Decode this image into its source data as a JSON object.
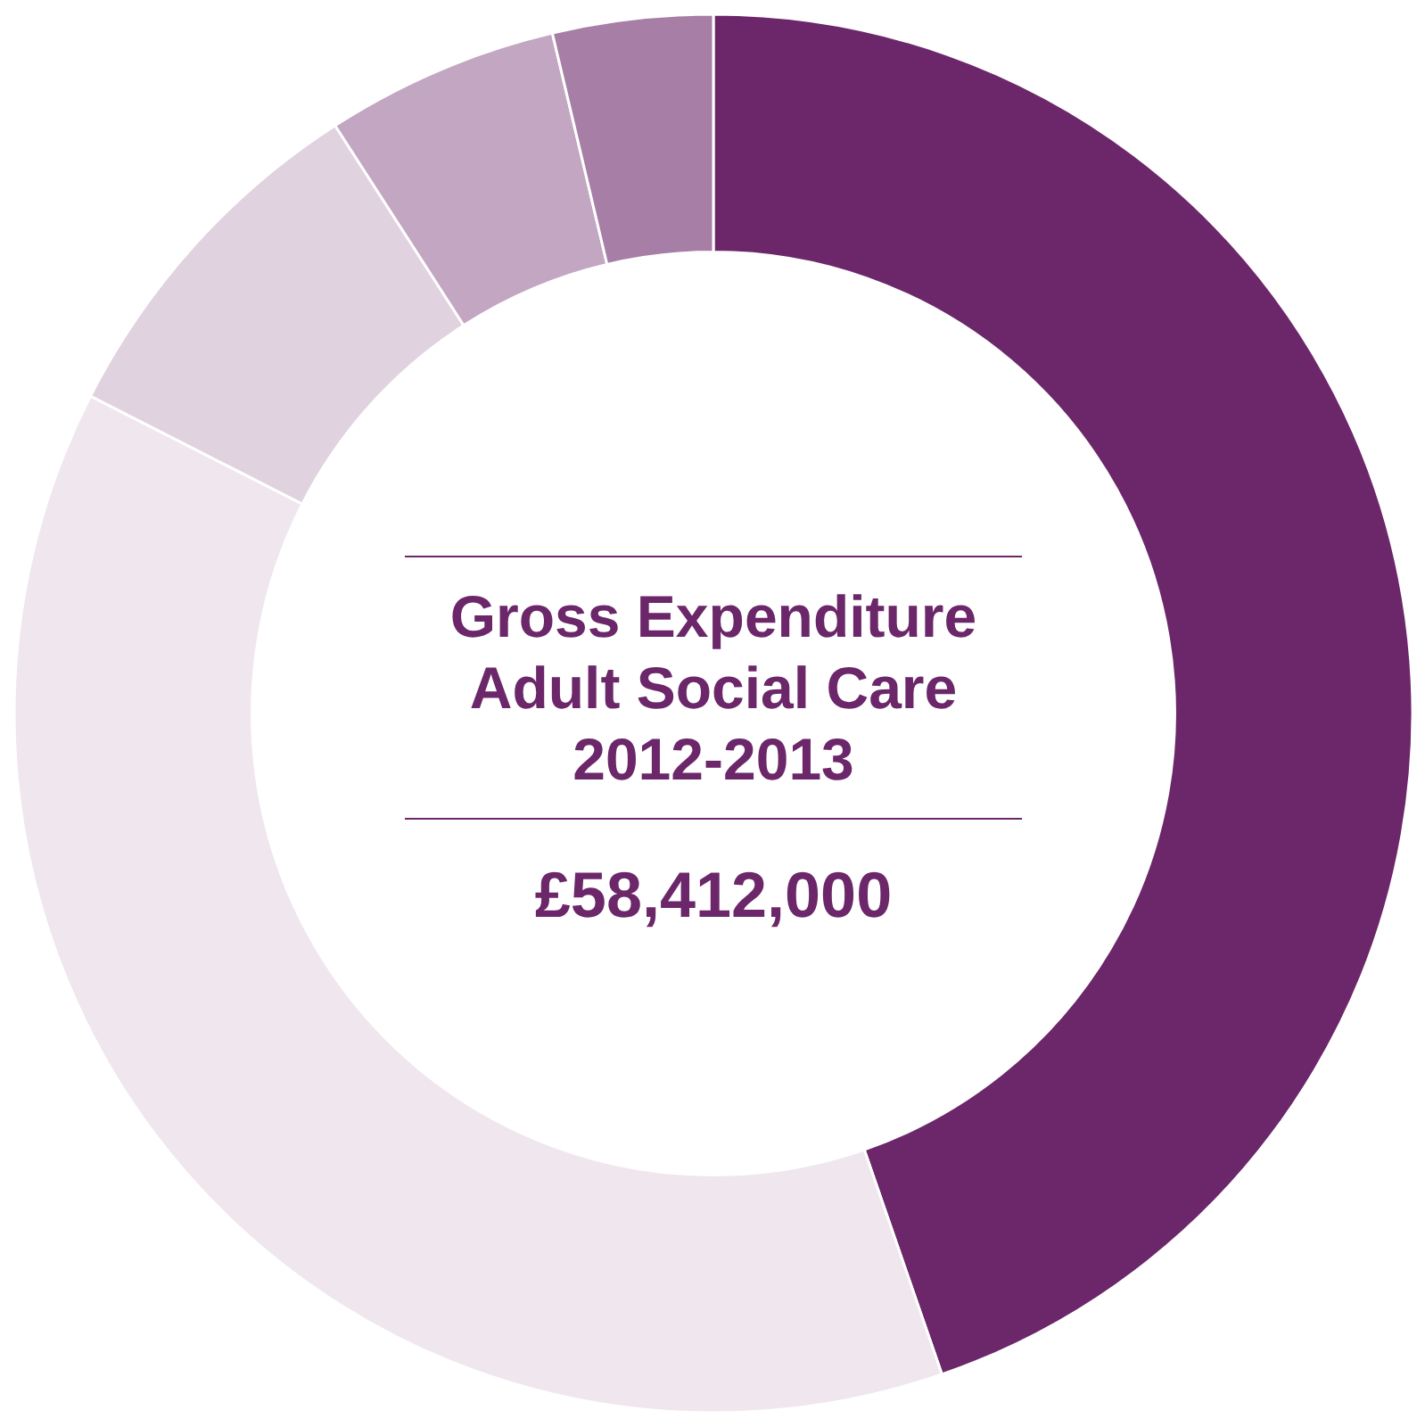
{
  "chart_data": {
    "type": "donut",
    "title": "Gross Expenditure Adult Social Care 2012-2013",
    "subtitle": "£58,412,000",
    "categories": [
      null,
      null,
      null,
      null,
      null
    ],
    "values": [
      44.7,
      37.8,
      8.4,
      5.4,
      3.7
    ],
    "colors": [
      "#6b2769",
      "#efe6ee",
      "#e0d2df",
      "#c2a6c2",
      "#a67ea6"
    ]
  }
}
